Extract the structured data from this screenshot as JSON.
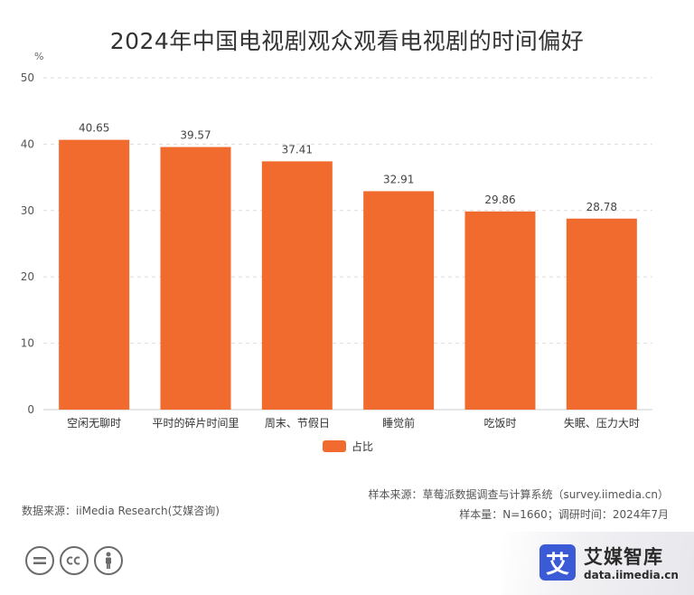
{
  "chart_data": {
    "type": "bar",
    "title": "2024年中国电视剧观众观看电视剧的时间偏好",
    "unit": "%",
    "categories": [
      "空闲无聊时",
      "平时的碎片时间里",
      "周末、节假日",
      "睡觉前",
      "吃饭时",
      "失眠、压力大时"
    ],
    "series": [
      {
        "name": "占比",
        "values": [
          40.65,
          39.57,
          37.41,
          32.91,
          29.86,
          28.78
        ],
        "color": "#f26b2e"
      }
    ],
    "y_ticks": [
      0,
      10,
      20,
      30,
      40,
      50
    ],
    "ylim": [
      0,
      50
    ],
    "grid": true,
    "legend_position": "bottom-center"
  },
  "footer": {
    "source_left": "数据来源：iiMedia Research(艾媒咨询)",
    "sample_source": "样本来源：草莓派数据调查与计算系统（survey.iimedia.cn）",
    "sample_info": "样本量：N=1660；调研时间：2024年7月"
  },
  "license_icons": [
    "equals-icon",
    "cc-icon",
    "person-icon"
  ],
  "brand": {
    "logo_char": "艾",
    "name": "艾媒智库",
    "url": "data.iimedia.cn",
    "logo_color": "#3a5ad6"
  }
}
